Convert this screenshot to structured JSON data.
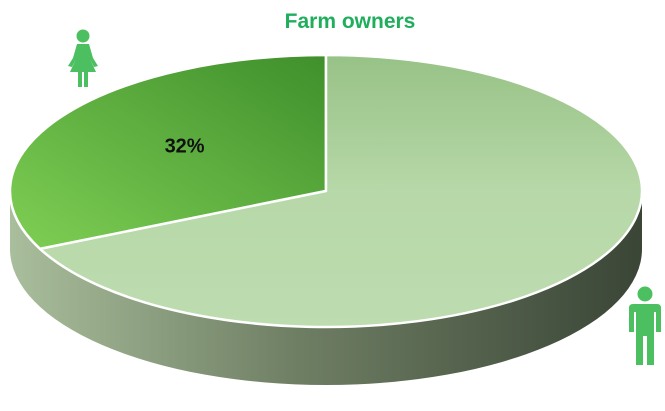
{
  "colors": {
    "title": "#1fae5c",
    "female_icon": "#4cc061",
    "male_icon": "#4cc061",
    "slice_female": "#6fc84a",
    "slice_male": "#b8d9aa",
    "side_light": "#a9be9c",
    "side_dark": "#3f4a3a"
  },
  "icons": {
    "female": "female-person-icon",
    "male": "male-person-icon"
  },
  "chart_data": {
    "type": "pie",
    "title": "Farm owners",
    "style": "3d",
    "start_angle_deg": 90,
    "direction": "counter-clockwise",
    "slices": [
      {
        "value": 32,
        "label": "32%",
        "icon": "female-person-icon"
      },
      {
        "value": 68,
        "label": "",
        "icon": "male-person-icon"
      }
    ]
  }
}
